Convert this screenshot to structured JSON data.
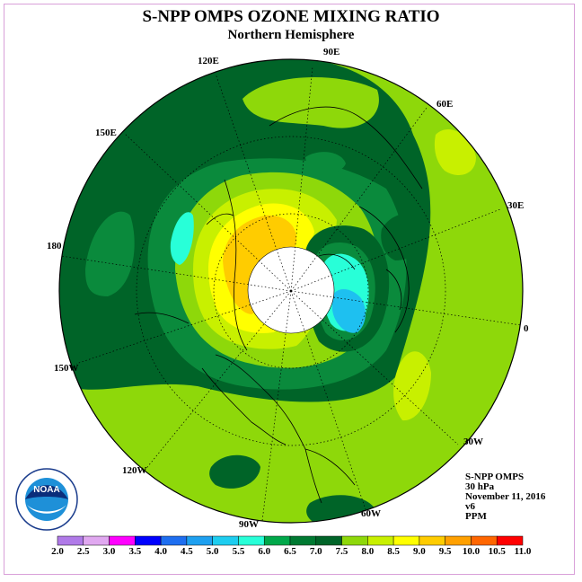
{
  "title": "S-NPP OMPS OZONE MIXING RATIO",
  "subtitle": "Northern Hemisphere",
  "longitude_labels": [
    "90E",
    "60E",
    "30E",
    "0",
    "30W",
    "60W",
    "90W",
    "120W",
    "150W",
    "180",
    "150E",
    "120E"
  ],
  "info": {
    "instrument": "S-NPP OMPS",
    "pressure": "30 hPa",
    "date": "November 11, 2016",
    "version": "v6",
    "units": "PPM"
  },
  "logo": {
    "text": "NOAA",
    "ring_text": "NATIONAL OCEANIC AND ATMOSPHERIC ADMINISTRATION U.S. DEPARTMENT OF COMMERCE"
  },
  "colorbar": {
    "ticks": [
      "2.0",
      "2.5",
      "3.0",
      "3.5",
      "4.0",
      "4.5",
      "5.0",
      "5.5",
      "6.0",
      "6.5",
      "7.0",
      "7.5",
      "8.0",
      "8.5",
      "9.0",
      "9.5",
      "10.0",
      "10.5",
      "11.0"
    ],
    "colors": [
      "#b07ae8",
      "#e0a8f0",
      "#ff00ff",
      "#0000ff",
      "#1e6ef0",
      "#1ea0f0",
      "#1ecdf0",
      "#28ffd8",
      "#00a84a",
      "#007a32",
      "#006428",
      "#8ed80a",
      "#c8f000",
      "#ffff00",
      "#ffcc00",
      "#ffa000",
      "#ff6600",
      "#ff0000",
      "#8b4513"
    ]
  },
  "colors": {
    "dark_green": "#006428",
    "mid_green": "#0a8a3c",
    "lime": "#8ed80a",
    "yellow_green": "#c8f000",
    "yellow": "#ffff00",
    "orange": "#ffcc00",
    "cyan": "#28ffd8",
    "blue": "#1ec0f0"
  }
}
